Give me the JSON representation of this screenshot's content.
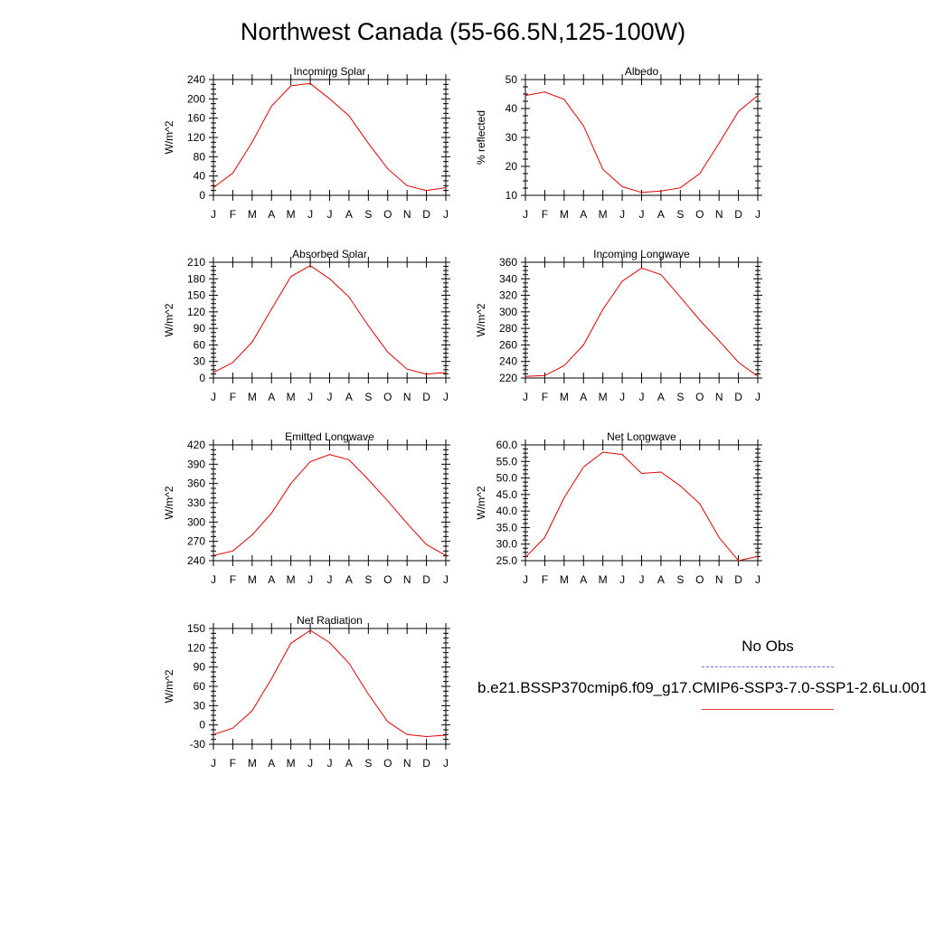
{
  "title": "Northwest Canada (55-66.5N,125-100W)",
  "months": [
    "J",
    "F",
    "M",
    "A",
    "M",
    "J",
    "J",
    "A",
    "S",
    "O",
    "N",
    "D",
    "J"
  ],
  "legend": {
    "obs_label": "No Obs",
    "model_label": "b.e21.BSSP370cmip6.f09_g17.CMIP6-SSP3-7.0-SSP1-2.6Lu.001",
    "obs_color": "#6f6fe0",
    "model_color": "#e00000"
  },
  "chart_data": [
    {
      "type": "line",
      "title": "Incoming Solar",
      "ylabel": "W/m^2",
      "ylim": [
        0,
        240
      ],
      "yticks": [
        "0",
        "40",
        "80",
        "120",
        "160",
        "200",
        "240"
      ],
      "series": [
        {
          "values": [
            16,
            46,
            110,
            185,
            227,
            232,
            200,
            165,
            108,
            55,
            20,
            10,
            16
          ]
        }
      ]
    },
    {
      "type": "line",
      "title": "Albedo",
      "ylabel": "% reflected",
      "ylim": [
        10,
        50
      ],
      "yticks": [
        "10",
        "20",
        "30",
        "40",
        "50"
      ],
      "series": [
        {
          "values": [
            44.5,
            45.7,
            43.2,
            34,
            19,
            13,
            11,
            11.5,
            12.6,
            17.5,
            28,
            39,
            44.5
          ]
        }
      ]
    },
    {
      "type": "line",
      "title": "Absorbed Solar",
      "ylabel": "W/m^2",
      "ylim": [
        0,
        210
      ],
      "yticks": [
        "0",
        "30",
        "60",
        "90",
        "120",
        "150",
        "180",
        "210"
      ],
      "series": [
        {
          "values": [
            10,
            28,
            65,
            125,
            184,
            204,
            180,
            147,
            95,
            47,
            16,
            7,
            10
          ]
        }
      ]
    },
    {
      "type": "line",
      "title": "Incoming Longwave",
      "ylabel": "W/m^2",
      "ylim": [
        220,
        360
      ],
      "yticks": [
        "220",
        "240",
        "260",
        "280",
        "300",
        "320",
        "340",
        "360"
      ],
      "series": [
        {
          "values": [
            222,
            223,
            235,
            260,
            303,
            337,
            353,
            345,
            318,
            290,
            265,
            239,
            222
          ]
        }
      ]
    },
    {
      "type": "line",
      "title": "Emitted Longwave",
      "ylabel": "W/m^2",
      "ylim": [
        240,
        420
      ],
      "yticks": [
        "240",
        "270",
        "300",
        "330",
        "360",
        "390",
        "420"
      ],
      "series": [
        {
          "values": [
            248,
            255,
            280,
            314,
            360,
            394,
            405,
            397,
            366,
            333,
            298,
            265,
            248
          ]
        }
      ]
    },
    {
      "type": "line",
      "title": "Net Longwave",
      "ylabel": "W/m^2",
      "ylim": [
        25,
        60
      ],
      "yticks": [
        "25.0",
        "30.0",
        "35.0",
        "40.0",
        "45.0",
        "50.0",
        "55.0",
        "60.0"
      ],
      "series": [
        {
          "values": [
            26,
            32,
            44,
            53.3,
            57.8,
            57.1,
            51.4,
            51.8,
            47.6,
            42.2,
            32,
            25,
            26.3
          ]
        }
      ]
    },
    {
      "type": "line",
      "title": "Net Radiation",
      "ylabel": "W/m^2",
      "ylim": [
        -30,
        150
      ],
      "yticks": [
        "-30",
        "0",
        "30",
        "60",
        "90",
        "120",
        "150"
      ],
      "series": [
        {
          "values": [
            -15,
            -5,
            22,
            72,
            127,
            147,
            128,
            96,
            48,
            5,
            -15,
            -18,
            -16
          ]
        }
      ]
    }
  ]
}
